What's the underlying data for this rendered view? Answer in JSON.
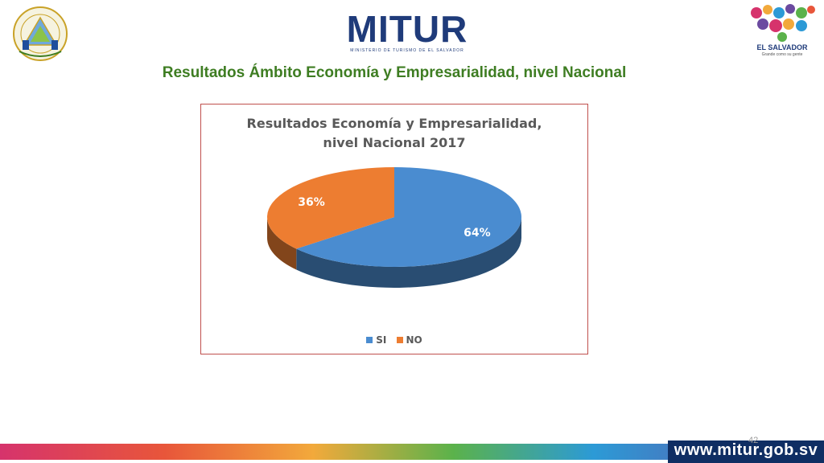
{
  "header": {
    "slide_title": "Resultados Ámbito Economía y Empresarialidad, nivel Nacional",
    "mitur_logo": "MITUR",
    "mitur_tagline": "MINISTERIO DE TURISMO DE EL SALVADOR",
    "brand_logo": "EL SALVADOR",
    "brand_motto": "Grande como su gente"
  },
  "chart_data": {
    "type": "pie",
    "title_lines": [
      "Resultados Economía y Empresarialidad,",
      "nivel Nacional 2017"
    ],
    "categories": [
      "SI",
      "NO"
    ],
    "values": [
      64,
      36
    ],
    "labels": [
      "64%",
      "36%"
    ],
    "colors": [
      "#4a8cd0",
      "#ed7d31"
    ],
    "legend_position": "bottom",
    "style": "3d"
  },
  "footer": {
    "website": "www.mitur.gob.sv",
    "page_number": "42"
  }
}
